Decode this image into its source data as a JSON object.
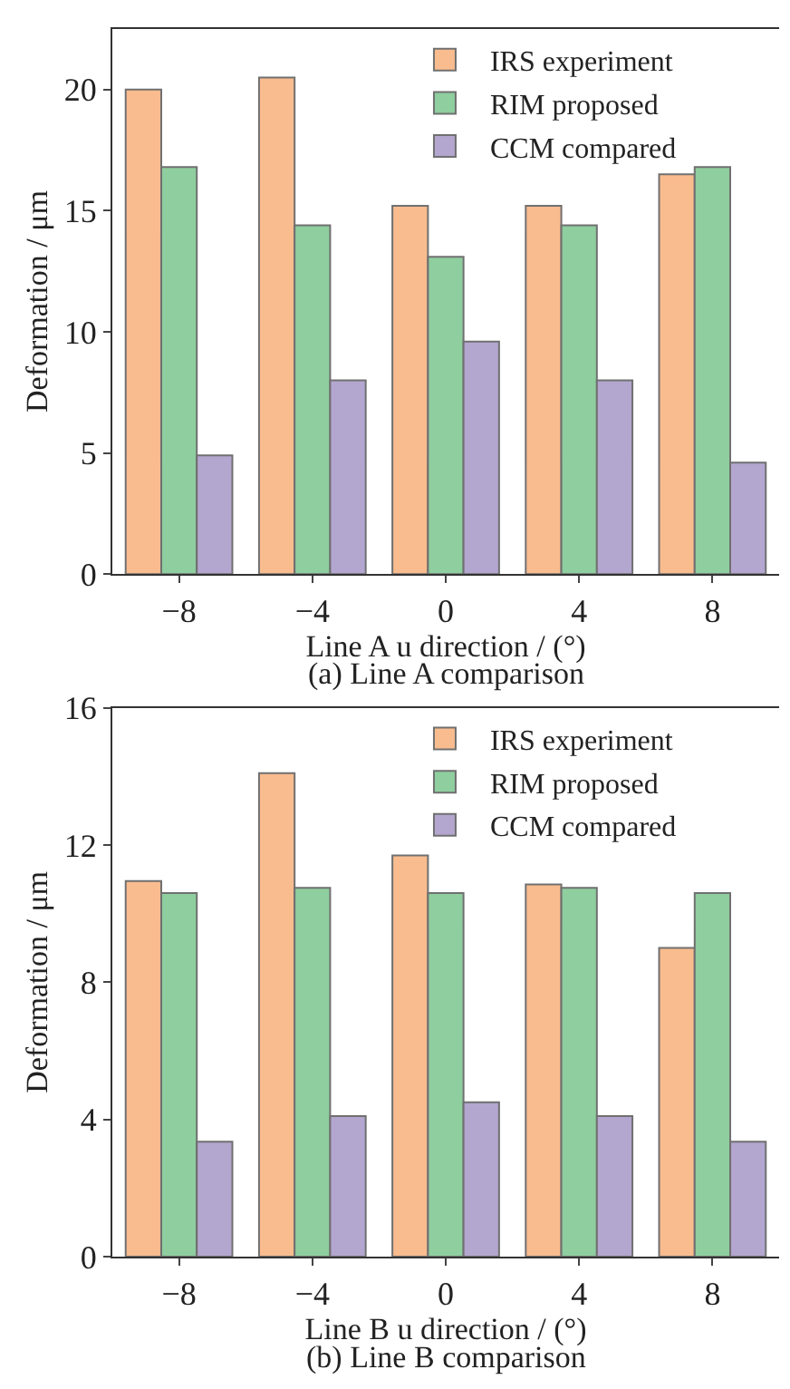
{
  "chart_data": [
    {
      "type": "bar",
      "categories": [
        "−8",
        "−4",
        "0",
        "4",
        "8"
      ],
      "xlabel": "Line A u direction / (°)",
      "ylabel": "Deformation / μm",
      "annotations": [
        "(a) Line A comparison"
      ],
      "ylim": [
        0,
        22.5
      ],
      "yticks": [
        0,
        5,
        10,
        15,
        20
      ],
      "legend": "top right",
      "series": [
        {
          "name": "IRS experiment",
          "color": "#f9bc8f",
          "values": [
            20.0,
            20.5,
            15.2,
            15.2,
            16.5
          ]
        },
        {
          "name": "RIM proposed",
          "color": "#8fce9f",
          "values": [
            16.8,
            14.4,
            13.1,
            14.4,
            16.8
          ]
        },
        {
          "name": "CCM compared",
          "color": "#b3a6cf",
          "values": [
            4.9,
            8.0,
            9.6,
            8.0,
            4.6
          ]
        }
      ]
    },
    {
      "type": "bar",
      "categories": [
        "−8",
        "−4",
        "0",
        "4",
        "8"
      ],
      "xlabel": "Line B u direction / (°)",
      "ylabel": "Deformation / μm",
      "annotations": [
        "(b) Line B comparison"
      ],
      "ylim": [
        0,
        16
      ],
      "yticks": [
        0,
        4,
        8,
        12,
        16
      ],
      "legend": "top right",
      "series": [
        {
          "name": "IRS experiment",
          "color": "#f9bc8f",
          "values": [
            10.95,
            14.1,
            11.7,
            10.85,
            9.0
          ]
        },
        {
          "name": "RIM proposed",
          "color": "#8fce9f",
          "values": [
            10.6,
            10.75,
            10.6,
            10.75,
            10.6
          ]
        },
        {
          "name": "CCM compared",
          "color": "#b3a6cf",
          "values": [
            3.35,
            4.1,
            4.5,
            4.1,
            3.35
          ]
        }
      ]
    }
  ]
}
